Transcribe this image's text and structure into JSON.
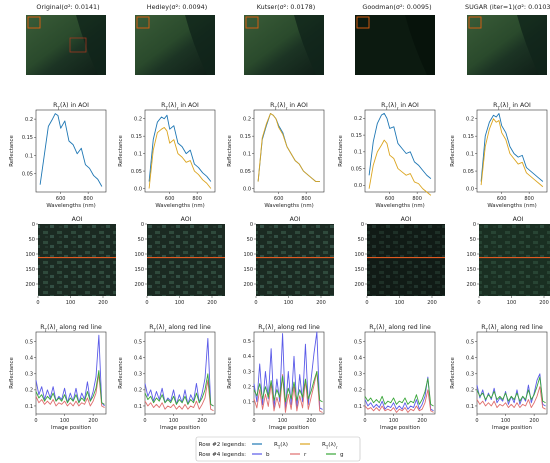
{
  "columns": [
    {
      "title": "Original(σ²: 0.0141)"
    },
    {
      "title": "Hedley(σ²: 0.0094)"
    },
    {
      "title": "Kutser(σ²: 0.0178)"
    },
    {
      "title": "Goodman(σ²: 0.0095)"
    },
    {
      "title": "SUGAR (iter=1)(σ²: 0.0103)"
    }
  ],
  "row2_titles": [
    "R_T(λ) in AOI",
    "R_T(λ)_r in AOI",
    "R_T(λ)_r in AOI",
    "R_T(λ)_r in AOI",
    "R_T(λ)_r in AOI"
  ],
  "row3_titles": [
    "AOI",
    "AOI",
    "AOI",
    "AOI",
    "AOI"
  ],
  "row4_titles": [
    "R_T(λ)_r along red line",
    "R_T(λ)_r along red line",
    "R_T(λ)_r along red line",
    "R_T(λ)_r along red line",
    "R_T(λ)_r along red line"
  ],
  "legend": {
    "row2_label": "Row #2 legends:",
    "row4_label": "Row #4 legends:",
    "row2_items": [
      {
        "name": "R_T(λ)",
        "color": "#1f77b4"
      },
      {
        "name": "R_T(λ)_r",
        "color": "#dba520"
      }
    ],
    "row4_items": [
      {
        "name": "b",
        "color": "#5b5be8"
      },
      {
        "name": "r",
        "color": "#e06f6f"
      },
      {
        "name": "g",
        "color": "#3aa63a"
      }
    ]
  },
  "colors": {
    "blue": "#1f77b4",
    "orange": "#dba520",
    "b": "#5b5be8",
    "r": "#e06f6f",
    "g": "#3aa63a",
    "aoi_box": "#e06010"
  },
  "chart_data": [
    {
      "type": "line",
      "row": 2,
      "panels": 5,
      "xlabel": "Wavelengths (nm)",
      "ylabel": "Reflectance",
      "xlim": [
        420,
        930
      ],
      "xticks": [
        600,
        800
      ],
      "yticks": [
        [
          0.05,
          0.1,
          0.15,
          0.2
        ],
        [
          0.0,
          0.05,
          0.1,
          0.15,
          0.2
        ],
        [
          0.0,
          0.05,
          0.1,
          0.15,
          0.2
        ],
        [
          0.0,
          0.05,
          0.1,
          0.15,
          0.2
        ],
        [
          0.0,
          0.05,
          0.1,
          0.15,
          0.2
        ]
      ],
      "ylims": [
        [
          0.0,
          0.225
        ],
        [
          -0.01,
          0.225
        ],
        [
          -0.01,
          0.225
        ],
        [
          -0.02,
          0.225
        ],
        [
          -0.01,
          0.225
        ]
      ],
      "x": [
        450,
        480,
        510,
        540,
        560,
        580,
        600,
        630,
        660,
        690,
        720,
        750,
        780,
        810,
        840,
        870,
        900
      ],
      "series": [
        {
          "panel": 0,
          "color": "#1f77b4",
          "values": [
            0.02,
            0.1,
            0.18,
            0.2,
            0.215,
            0.21,
            0.175,
            0.195,
            0.14,
            0.13,
            0.105,
            0.12,
            0.075,
            0.065,
            0.045,
            0.035,
            0.015
          ]
        },
        {
          "panel": 1,
          "color": "#1f77b4",
          "values": [
            0.02,
            0.14,
            0.19,
            0.205,
            0.2,
            0.21,
            0.17,
            0.18,
            0.13,
            0.12,
            0.1,
            0.11,
            0.07,
            0.06,
            0.045,
            0.035,
            0.02
          ]
        },
        {
          "panel": 1,
          "color": "#dba520",
          "values": [
            0.0,
            0.11,
            0.16,
            0.17,
            0.175,
            0.165,
            0.13,
            0.14,
            0.1,
            0.09,
            0.075,
            0.08,
            0.05,
            0.04,
            0.025,
            0.015,
            0.0
          ]
        },
        {
          "panel": 2,
          "color": "#1f77b4",
          "values": [
            0.02,
            0.14,
            0.18,
            0.215,
            0.21,
            0.2,
            0.18,
            0.16,
            0.12,
            0.1,
            0.08,
            0.07,
            0.05,
            0.04,
            0.03,
            0.02,
            0.02
          ]
        },
        {
          "panel": 2,
          "color": "#dba520",
          "values": [
            0.02,
            0.145,
            0.185,
            0.215,
            0.21,
            0.2,
            0.175,
            0.155,
            0.12,
            0.1,
            0.08,
            0.07,
            0.05,
            0.04,
            0.03,
            0.02,
            0.02
          ]
        },
        {
          "panel": 3,
          "color": "#1f77b4",
          "values": [
            0.03,
            0.13,
            0.185,
            0.21,
            0.215,
            0.2,
            0.17,
            0.175,
            0.125,
            0.11,
            0.095,
            0.1,
            0.07,
            0.06,
            0.045,
            0.03,
            0.02
          ]
        },
        {
          "panel": 3,
          "color": "#dba520",
          "values": [
            -0.01,
            0.06,
            0.1,
            0.12,
            0.135,
            0.125,
            0.09,
            0.08,
            0.05,
            0.04,
            0.03,
            0.035,
            0.01,
            0.005,
            -0.01,
            -0.02,
            -0.03
          ]
        },
        {
          "panel": 4,
          "color": "#1f77b4",
          "values": [
            0.02,
            0.15,
            0.19,
            0.21,
            0.205,
            0.215,
            0.18,
            0.16,
            0.12,
            0.1,
            0.09,
            0.095,
            0.06,
            0.05,
            0.04,
            0.03,
            0.02
          ]
        },
        {
          "panel": 4,
          "color": "#dba520",
          "values": [
            0.01,
            0.12,
            0.17,
            0.2,
            0.19,
            0.195,
            0.16,
            0.14,
            0.1,
            0.085,
            0.07,
            0.075,
            0.045,
            0.035,
            0.025,
            0.015,
            0.005
          ]
        }
      ]
    },
    {
      "type": "heatmap",
      "row": 3,
      "panels": 5,
      "yticks": [
        0,
        50,
        100,
        150,
        200
      ],
      "xticks": [
        0,
        100,
        200
      ],
      "xlim": [
        0,
        240
      ],
      "ylim": [
        240,
        0
      ],
      "red_line_y": 112
    },
    {
      "type": "line",
      "row": 4,
      "panels": 5,
      "xlabel": "Image position",
      "ylabel": "Reflectance",
      "xlim": [
        0,
        245
      ],
      "xticks": [
        0,
        100,
        200
      ],
      "yticks": [
        0.1,
        0.2,
        0.3,
        0.4,
        0.5
      ],
      "ylims": [
        [
          0.05,
          0.56
        ],
        [
          0.05,
          0.56
        ],
        [
          0.02,
          0.56
        ],
        [
          0.05,
          0.56
        ],
        [
          0.05,
          0.56
        ]
      ],
      "x": [
        0,
        10,
        20,
        30,
        40,
        50,
        60,
        70,
        80,
        90,
        100,
        110,
        120,
        130,
        140,
        150,
        160,
        170,
        180,
        190,
        200,
        210,
        220,
        230,
        240
      ],
      "series": [
        {
          "panel": 0,
          "name": "b",
          "color": "#5b5be8",
          "values": [
            0.26,
            0.17,
            0.22,
            0.14,
            0.2,
            0.15,
            0.22,
            0.13,
            0.16,
            0.14,
            0.21,
            0.12,
            0.18,
            0.13,
            0.21,
            0.12,
            0.18,
            0.14,
            0.25,
            0.13,
            0.19,
            0.28,
            0.54,
            0.12,
            0.1
          ]
        },
        {
          "panel": 0,
          "name": "r",
          "color": "#e06f6f",
          "values": [
            0.16,
            0.12,
            0.14,
            0.11,
            0.13,
            0.11,
            0.14,
            0.1,
            0.12,
            0.11,
            0.13,
            0.1,
            0.12,
            0.1,
            0.13,
            0.1,
            0.12,
            0.11,
            0.15,
            0.1,
            0.13,
            0.18,
            0.3,
            0.1,
            0.09
          ]
        },
        {
          "panel": 0,
          "name": "g",
          "color": "#3aa63a",
          "values": [
            0.19,
            0.15,
            0.17,
            0.13,
            0.16,
            0.14,
            0.18,
            0.13,
            0.15,
            0.13,
            0.17,
            0.12,
            0.15,
            0.13,
            0.17,
            0.12,
            0.15,
            0.13,
            0.19,
            0.13,
            0.16,
            0.21,
            0.32,
            0.12,
            0.11
          ]
        },
        {
          "panel": 1,
          "name": "b",
          "color": "#5b5be8",
          "values": [
            0.24,
            0.16,
            0.2,
            0.13,
            0.19,
            0.14,
            0.21,
            0.12,
            0.15,
            0.13,
            0.2,
            0.11,
            0.17,
            0.12,
            0.2,
            0.11,
            0.17,
            0.13,
            0.24,
            0.12,
            0.18,
            0.27,
            0.52,
            0.11,
            0.1
          ]
        },
        {
          "panel": 1,
          "name": "r",
          "color": "#e06f6f",
          "values": [
            0.13,
            0.1,
            0.12,
            0.09,
            0.11,
            0.09,
            0.12,
            0.08,
            0.1,
            0.09,
            0.11,
            0.08,
            0.1,
            0.08,
            0.11,
            0.08,
            0.1,
            0.09,
            0.13,
            0.08,
            0.11,
            0.15,
            0.26,
            0.08,
            0.07
          ]
        },
        {
          "panel": 1,
          "name": "g",
          "color": "#3aa63a",
          "values": [
            0.18,
            0.14,
            0.16,
            0.12,
            0.15,
            0.13,
            0.17,
            0.12,
            0.14,
            0.12,
            0.16,
            0.11,
            0.14,
            0.12,
            0.16,
            0.11,
            0.14,
            0.12,
            0.18,
            0.12,
            0.15,
            0.2,
            0.3,
            0.11,
            0.1
          ]
        },
        {
          "panel": 2,
          "name": "b",
          "color": "#5b5be8",
          "values": [
            0.22,
            0.1,
            0.35,
            0.08,
            0.3,
            0.12,
            0.45,
            0.06,
            0.25,
            0.1,
            0.55,
            0.05,
            0.3,
            0.08,
            0.4,
            0.06,
            0.28,
            0.1,
            0.48,
            0.08,
            0.25,
            0.42,
            0.56,
            0.06,
            0.05
          ]
        },
        {
          "panel": 2,
          "name": "r",
          "color": "#e06f6f",
          "values": [
            0.12,
            0.06,
            0.18,
            0.05,
            0.15,
            0.07,
            0.22,
            0.04,
            0.13,
            0.06,
            0.28,
            0.03,
            0.15,
            0.05,
            0.2,
            0.04,
            0.14,
            0.06,
            0.24,
            0.05,
            0.13,
            0.21,
            0.3,
            0.04,
            0.03
          ]
        },
        {
          "panel": 2,
          "name": "g",
          "color": "#3aa63a",
          "values": [
            0.18,
            0.14,
            0.22,
            0.12,
            0.2,
            0.13,
            0.24,
            0.11,
            0.18,
            0.13,
            0.27,
            0.1,
            0.19,
            0.12,
            0.23,
            0.11,
            0.18,
            0.13,
            0.25,
            0.12,
            0.17,
            0.24,
            0.3,
            0.11,
            0.1
          ]
        },
        {
          "panel": 3,
          "name": "b",
          "color": "#5b5be8",
          "values": [
            0.14,
            0.1,
            0.12,
            0.09,
            0.11,
            0.09,
            0.13,
            0.08,
            0.1,
            0.09,
            0.12,
            0.08,
            0.1,
            0.08,
            0.12,
            0.08,
            0.1,
            0.09,
            0.14,
            0.08,
            0.11,
            0.16,
            0.28,
            0.08,
            0.07
          ]
        },
        {
          "panel": 3,
          "name": "r",
          "color": "#e06f6f",
          "values": [
            0.1,
            0.08,
            0.09,
            0.07,
            0.09,
            0.07,
            0.1,
            0.07,
            0.08,
            0.07,
            0.09,
            0.06,
            0.08,
            0.07,
            0.09,
            0.06,
            0.08,
            0.07,
            0.1,
            0.07,
            0.08,
            0.12,
            0.2,
            0.07,
            0.06
          ]
        },
        {
          "panel": 3,
          "name": "g",
          "color": "#3aa63a",
          "values": [
            0.16,
            0.13,
            0.15,
            0.12,
            0.14,
            0.12,
            0.16,
            0.11,
            0.13,
            0.12,
            0.15,
            0.11,
            0.13,
            0.12,
            0.15,
            0.11,
            0.13,
            0.12,
            0.17,
            0.11,
            0.14,
            0.19,
            0.27,
            0.11,
            0.1
          ]
        },
        {
          "panel": 4,
          "name": "b",
          "color": "#5b5be8",
          "values": [
            0.23,
            0.15,
            0.2,
            0.13,
            0.18,
            0.14,
            0.21,
            0.12,
            0.15,
            0.13,
            0.19,
            0.11,
            0.16,
            0.12,
            0.2,
            0.11,
            0.16,
            0.13,
            0.23,
            0.12,
            0.18,
            0.26,
            0.3,
            0.11,
            0.1
          ]
        },
        {
          "panel": 4,
          "name": "r",
          "color": "#e06f6f",
          "values": [
            0.14,
            0.11,
            0.13,
            0.1,
            0.12,
            0.1,
            0.13,
            0.09,
            0.11,
            0.1,
            0.12,
            0.09,
            0.11,
            0.09,
            0.12,
            0.09,
            0.11,
            0.1,
            0.14,
            0.09,
            0.12,
            0.16,
            0.22,
            0.09,
            0.08
          ]
        },
        {
          "panel": 4,
          "name": "g",
          "color": "#3aa63a",
          "values": [
            0.2,
            0.16,
            0.18,
            0.14,
            0.17,
            0.15,
            0.19,
            0.14,
            0.16,
            0.14,
            0.18,
            0.13,
            0.16,
            0.14,
            0.18,
            0.13,
            0.16,
            0.14,
            0.2,
            0.14,
            0.17,
            0.22,
            0.28,
            0.13,
            0.12
          ]
        }
      ]
    }
  ]
}
